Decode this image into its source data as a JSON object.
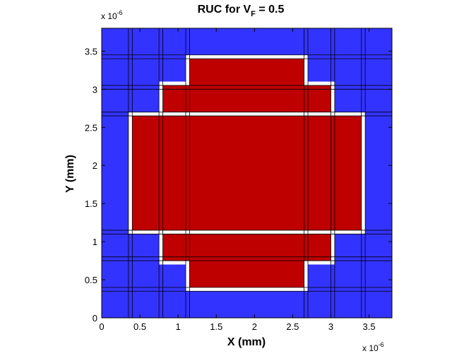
{
  "chart_data": {
    "type": "heatmap",
    "title": {
      "prefix": "RUC for V",
      "subscript": "F",
      "suffix": " = 0.5"
    },
    "xlabel": "X (mm)",
    "ylabel": "Y (mm)",
    "xlim": [
      0,
      3.8
    ],
    "ylim": [
      0,
      3.8
    ],
    "x_ticks": [
      "0",
      "0.5",
      "1",
      "1.5",
      "2",
      "2.5",
      "3",
      "3.5"
    ],
    "y_ticks": [
      "0",
      "0.5",
      "1",
      "1.5",
      "2",
      "2.5",
      "3",
      "3.5"
    ],
    "x_tick_values": [
      0,
      0.5,
      1,
      1.5,
      2,
      2.5,
      3,
      3.5
    ],
    "y_tick_values": [
      0,
      0.5,
      1,
      1.5,
      2,
      2.5,
      3,
      3.5
    ],
    "x_multiplier": {
      "base": "x 10",
      "exponent": "-6"
    },
    "y_multiplier": {
      "base": "x 10",
      "exponent": "-6"
    },
    "grid_edges": [
      0,
      0.35,
      0.4,
      0.75,
      0.8,
      1.1,
      1.15,
      2.65,
      2.7,
      3.0,
      3.05,
      3.4,
      3.45,
      3.8
    ],
    "colors": {
      "matrix": "#3333FF",
      "interface": "#FFFFFF",
      "fiber": "#BF0000",
      "gridline": "#000000"
    },
    "regions": [
      {
        "name": "fiber-top-row",
        "material": "fiber",
        "x": [
          1.15,
          2.65
        ],
        "y": [
          3.05,
          3.4
        ]
      },
      {
        "name": "fiber-upper-row",
        "material": "fiber",
        "x": [
          0.8,
          3.0
        ],
        "y": [
          2.7,
          3.05
        ]
      },
      {
        "name": "fiber-center-band",
        "material": "fiber",
        "x": [
          0.4,
          3.4
        ],
        "y": [
          1.15,
          2.65
        ]
      },
      {
        "name": "fiber-lower-row",
        "material": "fiber",
        "x": [
          0.8,
          3.0
        ],
        "y": [
          0.75,
          1.1
        ]
      },
      {
        "name": "fiber-bottom-row",
        "material": "fiber",
        "x": [
          1.15,
          2.65
        ],
        "y": [
          0.4,
          0.75
        ]
      }
    ],
    "interface_regions": [
      {
        "name": "interface-top-row",
        "x": [
          1.1,
          2.7
        ],
        "y": [
          3.0,
          3.45
        ]
      },
      {
        "name": "interface-upper-row",
        "x": [
          0.75,
          3.05
        ],
        "y": [
          2.65,
          3.1
        ]
      },
      {
        "name": "interface-center-band",
        "x": [
          0.35,
          3.45
        ],
        "y": [
          1.1,
          2.7
        ]
      },
      {
        "name": "interface-lower-row",
        "x": [
          0.75,
          3.05
        ],
        "y": [
          0.7,
          1.15
        ]
      },
      {
        "name": "interface-bottom-row",
        "x": [
          1.1,
          2.7
        ],
        "y": [
          0.35,
          0.8
        ]
      }
    ]
  }
}
